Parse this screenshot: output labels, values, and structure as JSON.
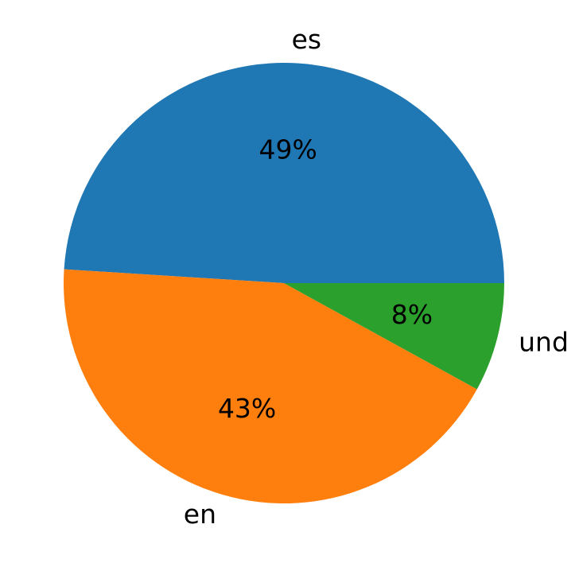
{
  "chart_data": {
    "type": "pie",
    "categories": [
      "es",
      "en",
      "und"
    ],
    "values": [
      49,
      43,
      8
    ],
    "value_labels": [
      "49%",
      "43%",
      "8%"
    ],
    "colors": [
      "#1f77b4",
      "#ff7f0e",
      "#2ca02c"
    ]
  }
}
